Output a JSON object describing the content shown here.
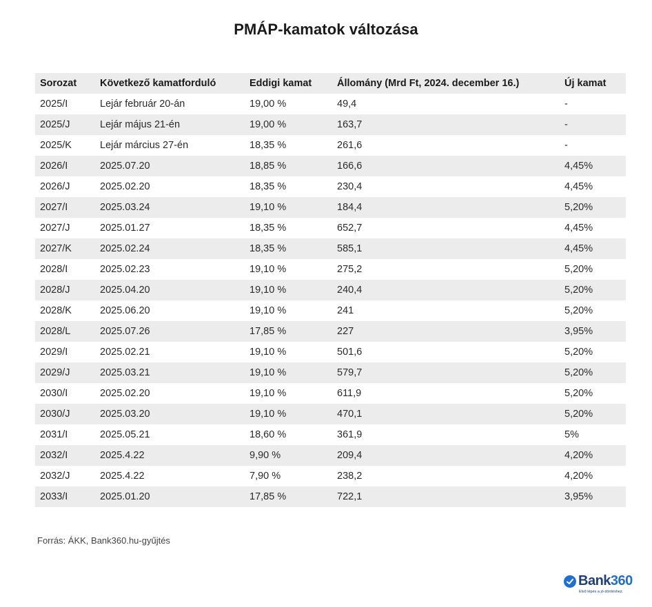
{
  "title": "PMÁP-kamatok változása",
  "table": {
    "headers": [
      "Sorozat",
      "Következő kamatforduló",
      "Eddigi kamat",
      "Állomány (Mrd Ft, 2024. december 16.)",
      "Új kamat"
    ],
    "rows": [
      [
        "2025/I",
        "Lejár február 20-án",
        "19,00 %",
        "49,4",
        "-"
      ],
      [
        "2025/J",
        "Lejár május 21-én",
        "19,00 %",
        "163,7",
        "-"
      ],
      [
        "2025/K",
        "Lejár március 27-én",
        "18,35 %",
        "261,6",
        "-"
      ],
      [
        "2026/I",
        "2025.07.20",
        "18,85 %",
        "166,6",
        "4,45%"
      ],
      [
        "2026/J",
        "2025.02.20",
        "18,35 %",
        "230,4",
        "4,45%"
      ],
      [
        "2027/I",
        "2025.03.24",
        "19,10 %",
        "184,4",
        "5,20%"
      ],
      [
        "2027/J",
        "2025.01.27",
        "18,35 %",
        "652,7",
        "4,45%"
      ],
      [
        "2027/K",
        "2025.02.24",
        "18,35 %",
        "585,1",
        "4,45%"
      ],
      [
        "2028/I",
        "2025.02.23",
        "19,10 %",
        "275,2",
        "5,20%"
      ],
      [
        "2028/J",
        "2025.04.20",
        "19,10 %",
        "240,4",
        "5,20%"
      ],
      [
        "2028/K",
        "2025.06.20",
        "19,10 %",
        "241",
        "5,20%"
      ],
      [
        "2028/L",
        "2025.07.26",
        "17,85 %",
        "227",
        "3,95%"
      ],
      [
        "2029/I",
        "2025.02.21",
        "19,10 %",
        "501,6",
        "5,20%"
      ],
      [
        "2029/J",
        "2025.03.21",
        "19,10 %",
        "579,7",
        "5,20%"
      ],
      [
        "2030/I",
        "2025.02.20",
        "19,10 %",
        "611,9",
        "5,20%"
      ],
      [
        "2030/J",
        "2025.03.20",
        "19,10 %",
        "470,1",
        "5,20%"
      ],
      [
        "2031/I",
        "2025.05.21",
        "18,60 %",
        "361,9",
        "5%"
      ],
      [
        "2032/I",
        "2025.4.22",
        "9,90 %",
        "209,4",
        "4,20%"
      ],
      [
        "2032/J",
        "2025.4.22",
        "7,90 %",
        "238,2",
        "4,20%"
      ],
      [
        "2033/I",
        "2025.01.20",
        "17,85 %",
        "722,1",
        "3,95%"
      ]
    ]
  },
  "source": "Forrás: ÁKK, Bank360.hu-gyűjtés",
  "logo": {
    "brand": "Bank",
    "brand_number": "360",
    "tagline": "Első lépés a jó döntéshez.",
    "icon": "check-circle-icon"
  },
  "colors": {
    "stripe": "#ececec",
    "brand_blue": "#1f6fd1",
    "brand_dark": "#1f3f7a"
  }
}
